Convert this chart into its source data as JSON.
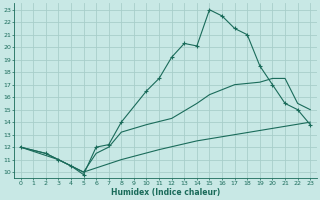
{
  "xlabel": "Humidex (Indice chaleur)",
  "xlim": [
    -0.5,
    23.5
  ],
  "ylim": [
    9.5,
    23.5
  ],
  "xticks": [
    0,
    1,
    2,
    3,
    4,
    5,
    6,
    7,
    8,
    9,
    10,
    11,
    12,
    13,
    14,
    15,
    16,
    17,
    18,
    19,
    20,
    21,
    22,
    23
  ],
  "yticks": [
    10,
    11,
    12,
    13,
    14,
    15,
    16,
    17,
    18,
    19,
    20,
    21,
    22,
    23
  ],
  "bg_color": "#c8e8e5",
  "grid_color": "#a8ceca",
  "line_color": "#1a6b5a",
  "main_line": {
    "x": [
      0,
      2,
      3,
      4,
      5,
      6,
      7,
      8,
      10,
      11,
      12,
      13,
      14,
      15,
      16,
      17,
      18,
      19,
      20,
      21,
      22,
      23
    ],
    "y": [
      12,
      11.5,
      11,
      10.5,
      9.8,
      12.0,
      12.2,
      14.0,
      16.5,
      17.5,
      19.2,
      20.3,
      20.1,
      23.0,
      22.5,
      21.5,
      21.0,
      18.5,
      17.0,
      15.5,
      15.0,
      13.8
    ]
  },
  "upper_line": {
    "x": [
      0,
      2,
      3,
      5,
      6,
      7,
      8,
      10,
      12,
      14,
      15,
      17,
      19,
      20,
      21,
      22,
      23
    ],
    "y": [
      12,
      11.5,
      11,
      10,
      11.5,
      12.0,
      13.2,
      13.8,
      14.3,
      15.5,
      16.2,
      17.0,
      17.2,
      17.5,
      17.5,
      15.5,
      15.0
    ]
  },
  "lower_line": {
    "x": [
      0,
      3,
      5,
      8,
      11,
      14,
      17,
      20,
      23
    ],
    "y": [
      12,
      11.0,
      10.0,
      11.0,
      11.8,
      12.5,
      13.0,
      13.5,
      14.0
    ]
  }
}
